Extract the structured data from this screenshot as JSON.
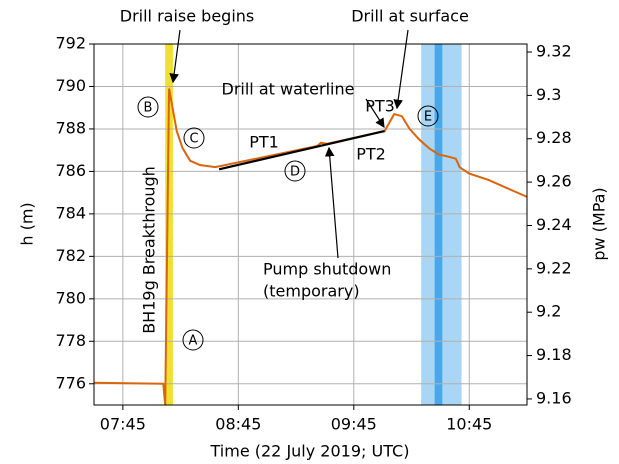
{
  "chart_data": {
    "type": "line",
    "x_label": "Time (22 July 2019; UTC)",
    "y_label": "h (m)",
    "y2_label": "pw (MPa)",
    "xlim": [
      "07:30",
      "11:15"
    ],
    "xticks": [
      "07:45",
      "08:45",
      "09:45",
      "10:45"
    ],
    "ylim": [
      775,
      792
    ],
    "yticks": [
      776,
      778,
      780,
      782,
      784,
      786,
      788,
      790,
      792
    ],
    "y2lim": [
      9.1572,
      9.3237
    ],
    "y2ticks": [
      9.16,
      9.18,
      9.2,
      9.22,
      9.24,
      9.26,
      9.28,
      9.3,
      9.32
    ],
    "grid": true,
    "series": [
      {
        "color": "#d9650f",
        "x": [
          "07:30",
          "08:06",
          "08:07",
          "08:09",
          "08:11",
          "08:13",
          "08:16",
          "08:20",
          "08:25",
          "08:33",
          "09:26",
          "09:28",
          "09:31",
          "10:01",
          "10:06",
          "10:10",
          "10:14",
          "10:19",
          "10:24",
          "10:29",
          "10:34",
          "10:38",
          "10:40",
          "10:45",
          "10:55",
          "11:05",
          "11:15"
        ],
        "values": [
          776.05,
          776.0,
          775.0,
          789.9,
          788.9,
          787.9,
          787.1,
          786.5,
          786.3,
          786.2,
          787.2,
          787.35,
          787.3,
          787.9,
          788.7,
          788.6,
          788.0,
          787.5,
          787.1,
          786.8,
          786.7,
          786.6,
          786.2,
          785.9,
          785.6,
          785.2,
          784.8
        ]
      },
      {
        "color": "#000000",
        "x": [
          "08:35",
          "10:01"
        ],
        "values": [
          786.1,
          787.9
        ]
      }
    ],
    "spans": [
      {
        "start": "08:07",
        "end": "08:11",
        "color": "#f0e030"
      },
      {
        "start": "10:20",
        "end": "10:41",
        "color": "#a9d6f5"
      },
      {
        "start": "10:27",
        "end": "10:31",
        "color": "#4ba8e8"
      }
    ],
    "annotations": [
      "Drill raise begins",
      "Drill at surface",
      "Drill at waterline",
      "PT3",
      "PT1",
      "PT2",
      "Pump shutdown",
      "(temporary)",
      "BH19g Breakthrough"
    ],
    "markers": [
      "A",
      "B",
      "C",
      "D",
      "E"
    ]
  }
}
